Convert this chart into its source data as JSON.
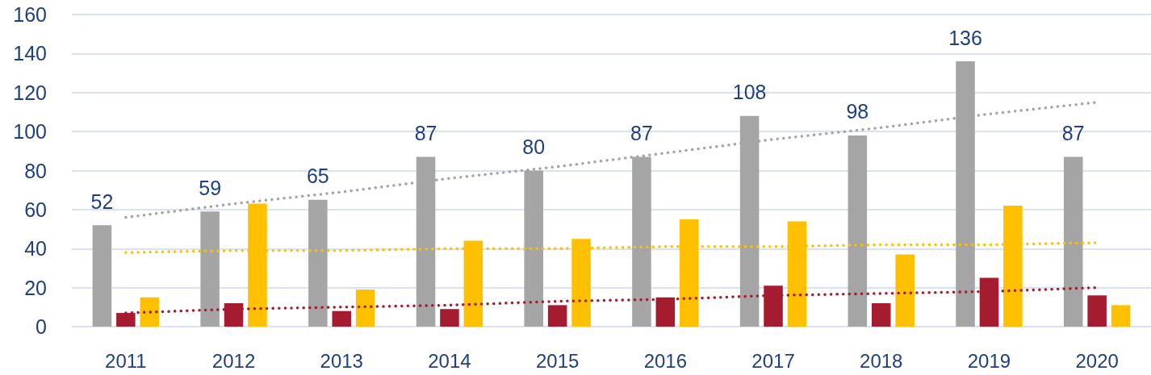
{
  "chart_data": {
    "type": "bar",
    "categories": [
      "2011",
      "2012",
      "2013",
      "2014",
      "2015",
      "2016",
      "2017",
      "2018",
      "2019",
      "2020"
    ],
    "series": [
      {
        "color": "#a5a5a5",
        "values": [
          52,
          59,
          65,
          87,
          80,
          87,
          108,
          98,
          136,
          87
        ],
        "value_labels": [
          "52",
          "59",
          "65",
          "87",
          "80",
          "87",
          "108",
          "98",
          "136",
          "87"
        ]
      },
      {
        "color": "#a51c30",
        "values": [
          7,
          12,
          8,
          9,
          11,
          15,
          21,
          12,
          25,
          16
        ]
      },
      {
        "color": "#ffc000",
        "values": [
          15,
          63,
          19,
          44,
          45,
          55,
          54,
          37,
          62,
          11
        ]
      },
      {
        "type": "line",
        "color": "#a5a5a5",
        "values": [
          56,
          63,
          69,
          76,
          82,
          89,
          96,
          102,
          109,
          115
        ],
        "line_style": "dotted",
        "marker": "none"
      },
      {
        "type": "line",
        "color": "#ffc000",
        "values": [
          38,
          39,
          39,
          40,
          40,
          41,
          41,
          42,
          42,
          43
        ],
        "line_style": "dotted",
        "marker": "none"
      },
      {
        "type": "line",
        "color": "#a51c30",
        "values": [
          7,
          9,
          10,
          11,
          13,
          14,
          16,
          17,
          18,
          20
        ],
        "line_style": "dotted",
        "marker": "none"
      }
    ],
    "ylim": [
      0,
      160
    ],
    "yticks": [
      0,
      20,
      40,
      60,
      80,
      100,
      120,
      140,
      160
    ],
    "grid": "y"
  }
}
